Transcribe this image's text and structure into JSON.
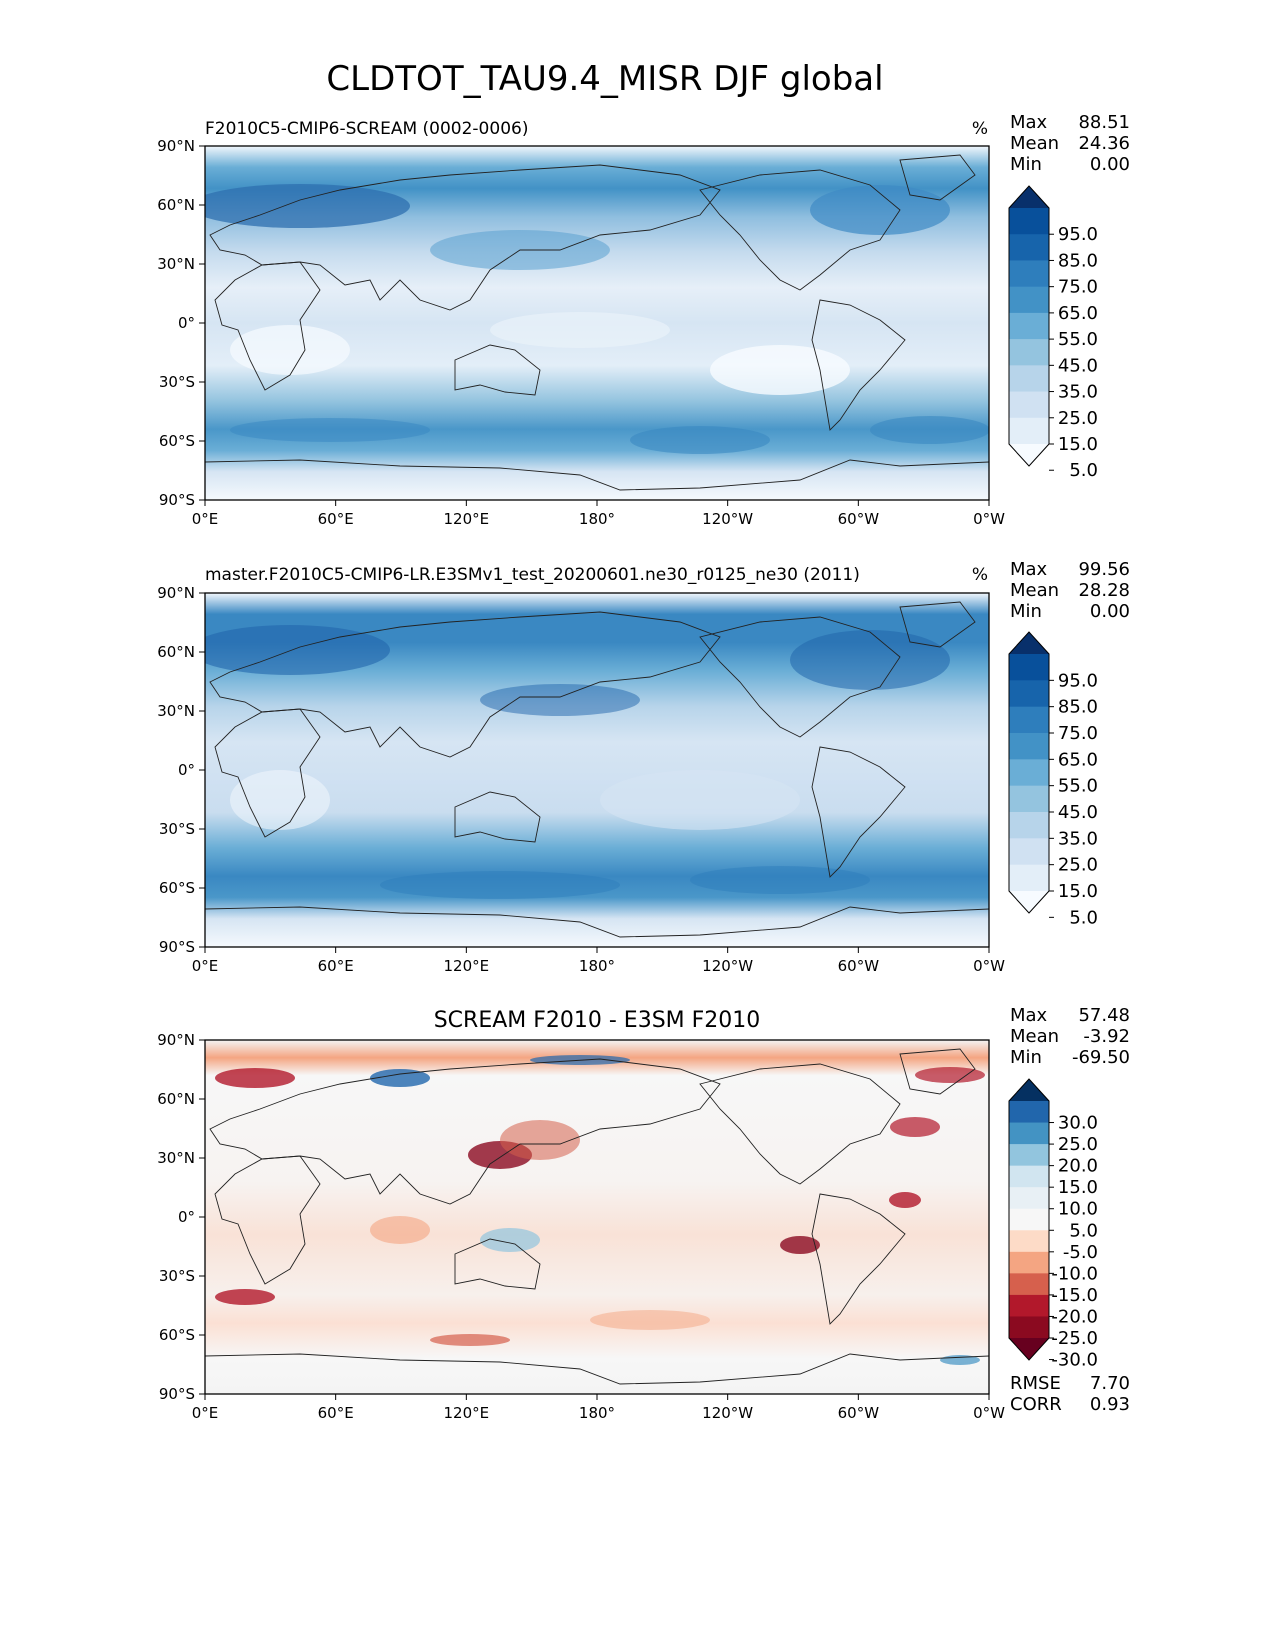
{
  "figure_title": "CLDTOT_TAU9.4_MISR DJF global",
  "x_ticks": [
    "0°E",
    "60°E",
    "120°E",
    "180°",
    "120°W",
    "60°W",
    "0°W"
  ],
  "y_ticks": [
    "90°N",
    "60°N",
    "30°N",
    "0°",
    "30°S",
    "60°S",
    "90°S"
  ],
  "panels": [
    {
      "title": "F2010C5-CMIP6-SCREAM (0002-0006)",
      "units": "%",
      "stats": {
        "max_label": "Max",
        "max": "88.51",
        "mean_label": "Mean",
        "mean": "24.36",
        "min_label": "Min",
        "min": "0.00"
      },
      "colorbar": {
        "labels": [
          "95.0",
          "85.0",
          "75.0",
          "65.0",
          "55.0",
          "45.0",
          "35.0",
          "25.0",
          "15.0",
          "5.0"
        ],
        "colors": [
          "#08306b",
          "#08509b",
          "#1764ab",
          "#2e7ebc",
          "#4292c6",
          "#6aaed6",
          "#94c4df",
          "#b7d4ea",
          "#d0e1f2",
          "#e3eef8",
          "#f7fbff"
        ]
      }
    },
    {
      "title": "master.F2010C5-CMIP6-LR.E3SMv1_test_20200601.ne30_r0125_ne30 (2011)",
      "units": "%",
      "stats": {
        "max_label": "Max",
        "max": "99.56",
        "mean_label": "Mean",
        "mean": "28.28",
        "min_label": "Min",
        "min": "0.00"
      },
      "colorbar": {
        "labels": [
          "95.0",
          "85.0",
          "75.0",
          "65.0",
          "55.0",
          "45.0",
          "35.0",
          "25.0",
          "15.0",
          "5.0"
        ],
        "colors": [
          "#08306b",
          "#08509b",
          "#1764ab",
          "#2e7ebc",
          "#4292c6",
          "#6aaed6",
          "#94c4df",
          "#b7d4ea",
          "#d0e1f2",
          "#e3eef8",
          "#f7fbff"
        ]
      }
    },
    {
      "title": "SCREAM F2010 - E3SM F2010",
      "units": "",
      "stats": {
        "max_label": "Max",
        "max": "57.48",
        "mean_label": "Mean",
        "mean": "-3.92",
        "min_label": "Min",
        "min": "-69.50"
      },
      "colorbar": {
        "labels": [
          "30.0",
          "25.0",
          "20.0",
          "15.0",
          "10.0",
          "5.0",
          "-5.0",
          "-10.0",
          "-15.0",
          "-20.0",
          "-25.0",
          "-30.0"
        ],
        "colors": [
          "#053061",
          "#2166ac",
          "#4393c3",
          "#92c5de",
          "#d1e5f0",
          "#e8f0f5",
          "#f7f7f7",
          "#fddbc7",
          "#f4a582",
          "#d6604d",
          "#b2182b",
          "#8b0a20",
          "#67001f"
        ]
      },
      "rmse_label": "RMSE",
      "rmse": "7.70",
      "corr_label": "CORR",
      "corr": "0.93"
    }
  ],
  "chart_data": [
    {
      "type": "heatmap",
      "title": "F2010C5-CMIP6-SCREAM (0002-0006)",
      "units": "%",
      "x_range": [
        "0°E",
        "0°W"
      ],
      "y_range": [
        "90°S",
        "90°N"
      ],
      "levels": [
        5,
        15,
        25,
        35,
        45,
        55,
        65,
        75,
        85,
        95
      ],
      "colormap": "Blues",
      "max": 88.51,
      "mean": 24.36,
      "min": 0.0
    },
    {
      "type": "heatmap",
      "title": "master.F2010C5-CMIP6-LR.E3SMv1_test_20200601.ne30_r0125_ne30 (2011)",
      "units": "%",
      "x_range": [
        "0°E",
        "0°W"
      ],
      "y_range": [
        "90°S",
        "90°N"
      ],
      "levels": [
        5,
        15,
        25,
        35,
        45,
        55,
        65,
        75,
        85,
        95
      ],
      "colormap": "Blues",
      "max": 99.56,
      "mean": 28.28,
      "min": 0.0
    },
    {
      "type": "heatmap",
      "title": "SCREAM F2010 - E3SM F2010",
      "x_range": [
        "0°E",
        "0°W"
      ],
      "y_range": [
        "90°S",
        "90°N"
      ],
      "levels": [
        -30,
        -25,
        -20,
        -15,
        -10,
        -5,
        5,
        10,
        15,
        20,
        25,
        30
      ],
      "colormap": "RdBu_r",
      "max": 57.48,
      "mean": -3.92,
      "min": -69.5,
      "rmse": 7.7,
      "corr": 0.93
    }
  ]
}
